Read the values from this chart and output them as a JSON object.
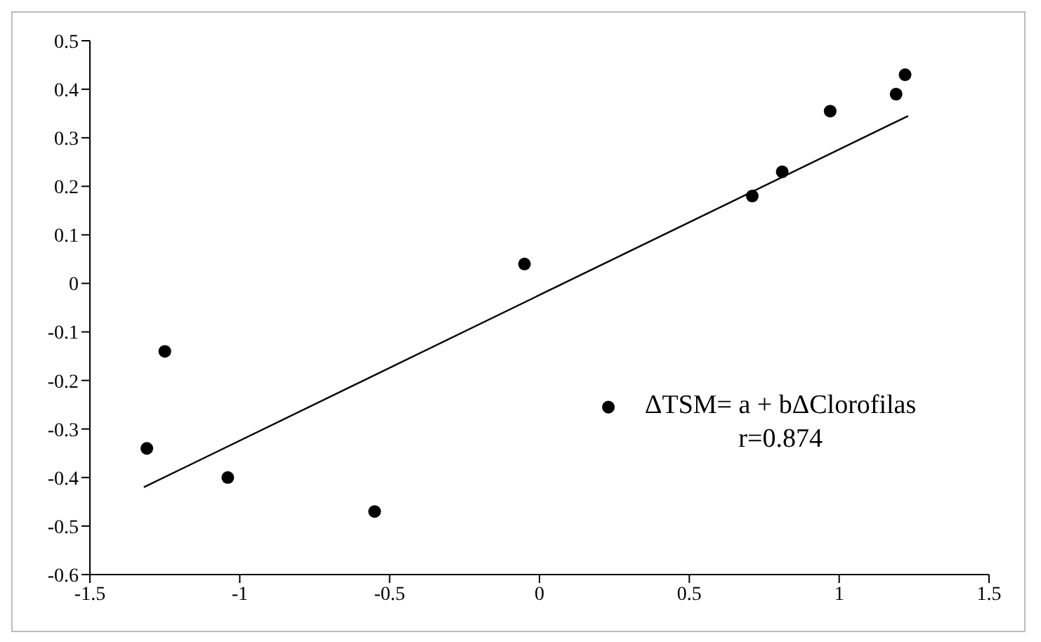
{
  "chart_data": {
    "type": "scatter",
    "xlim": [
      -1.5,
      1.5
    ],
    "ylim": [
      -0.6,
      0.5
    ],
    "xticks": [
      -1.5,
      -1,
      -0.5,
      0,
      0.5,
      1,
      1.5
    ],
    "yticks": [
      -0.6,
      -0.5,
      -0.4,
      -0.3,
      -0.2,
      -0.1,
      0,
      0.1,
      0.2,
      0.3,
      0.4,
      0.5
    ],
    "grid": false,
    "series": [
      {
        "marker": "circle",
        "color": "#000000",
        "x": [
          -1.25,
          -1.31,
          -1.04,
          -0.55,
          -0.05,
          0.23,
          0.71,
          0.81,
          0.97,
          1.19,
          1.22
        ],
        "values": [
          -0.14,
          -0.34,
          -0.4,
          -0.47,
          0.04,
          -0.255,
          0.18,
          0.23,
          0.355,
          0.39,
          0.43
        ]
      },
      {
        "type": "line",
        "color": "#000000",
        "x": [
          -1.32,
          1.23
        ],
        "values": [
          -0.42,
          0.345
        ]
      }
    ],
    "annotations": [
      "ΔTSM= a + bΔClorofilas",
      "r=0.874"
    ]
  }
}
